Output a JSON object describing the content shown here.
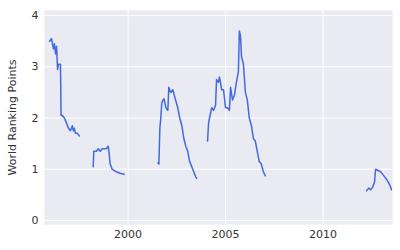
{
  "chart_data": {
    "type": "line",
    "y_label": "World Ranking Points",
    "color": "#4169e1",
    "grid": true,
    "xlim": [
      1995.71,
      2013.57
    ],
    "ylim": [
      -0.08,
      4.1
    ],
    "xticks": [
      2000,
      2005,
      2010
    ],
    "yticks": [
      0,
      1,
      2,
      3,
      4
    ],
    "x": [
      1995.97,
      1996.07,
      1996.17,
      1996.22,
      1996.28,
      1996.33,
      1996.38,
      1996.43,
      1996.53,
      1996.56,
      1996.63,
      1996.73,
      1996.84,
      1996.94,
      1997.04,
      1997.14,
      1997.19,
      1997.24,
      1997.3,
      1997.4,
      1997.5,
      1997.85,
      1998.21,
      1998.24,
      1998.37,
      1998.47,
      1998.57,
      1998.67,
      1998.88,
      1998.98,
      1999.03,
      1999.08,
      1999.18,
      1999.39,
      1999.59,
      1999.8,
      2000.7,
      2001.53,
      2001.58,
      2001.63,
      2001.68,
      2001.73,
      2001.84,
      2001.94,
      2002.04,
      2002.09,
      2002.19,
      2002.3,
      2002.4,
      2002.55,
      2002.65,
      2002.76,
      2002.86,
      2002.96,
      2003.06,
      2003.16,
      2003.27,
      2003.37,
      2003.47,
      2003.52,
      2003.8,
      2004.08,
      2004.13,
      2004.18,
      2004.29,
      2004.39,
      2004.49,
      2004.54,
      2004.64,
      2004.69,
      2004.74,
      2004.8,
      2004.9,
      2005.0,
      2005.1,
      2005.2,
      2005.26,
      2005.36,
      2005.46,
      2005.56,
      2005.66,
      2005.71,
      2005.77,
      2005.82,
      2005.92,
      2006.02,
      2006.12,
      2006.22,
      2006.33,
      2006.43,
      2006.53,
      2006.63,
      2006.73,
      2006.84,
      2006.94,
      2007.04,
      2009.6,
      2012.24,
      2012.35,
      2012.45,
      2012.55,
      2012.65,
      2012.7,
      2012.81,
      2012.96,
      2013.11,
      2013.27,
      2013.42,
      2013.52
    ],
    "values": [
      3.5,
      3.55,
      3.35,
      3.45,
      3.25,
      3.4,
      2.95,
      3.05,
      3.05,
      2.05,
      2.05,
      2.0,
      1.9,
      1.8,
      1.75,
      1.85,
      1.75,
      1.8,
      1.7,
      1.7,
      1.65,
      null,
      1.05,
      1.35,
      1.35,
      1.4,
      1.35,
      1.4,
      1.4,
      1.45,
      1.3,
      1.1,
      1.0,
      0.95,
      0.92,
      0.9,
      null,
      1.12,
      1.1,
      1.8,
      2.0,
      2.3,
      2.38,
      2.2,
      2.15,
      2.6,
      2.5,
      2.55,
      2.4,
      2.2,
      2.0,
      1.85,
      1.6,
      1.45,
      1.35,
      1.15,
      1.05,
      0.95,
      0.85,
      0.82,
      null,
      1.55,
      1.9,
      2.0,
      2.2,
      2.15,
      2.25,
      2.75,
      2.7,
      2.8,
      2.7,
      2.55,
      2.55,
      2.2,
      2.2,
      2.15,
      2.6,
      2.35,
      2.45,
      2.7,
      2.9,
      3.7,
      3.6,
      3.2,
      3.05,
      2.5,
      2.35,
      2.0,
      1.85,
      1.6,
      1.55,
      1.35,
      1.15,
      1.1,
      0.95,
      0.87,
      null,
      0.58,
      0.63,
      0.6,
      0.65,
      0.75,
      1.0,
      0.98,
      0.95,
      0.88,
      0.8,
      0.7,
      0.6
    ]
  }
}
